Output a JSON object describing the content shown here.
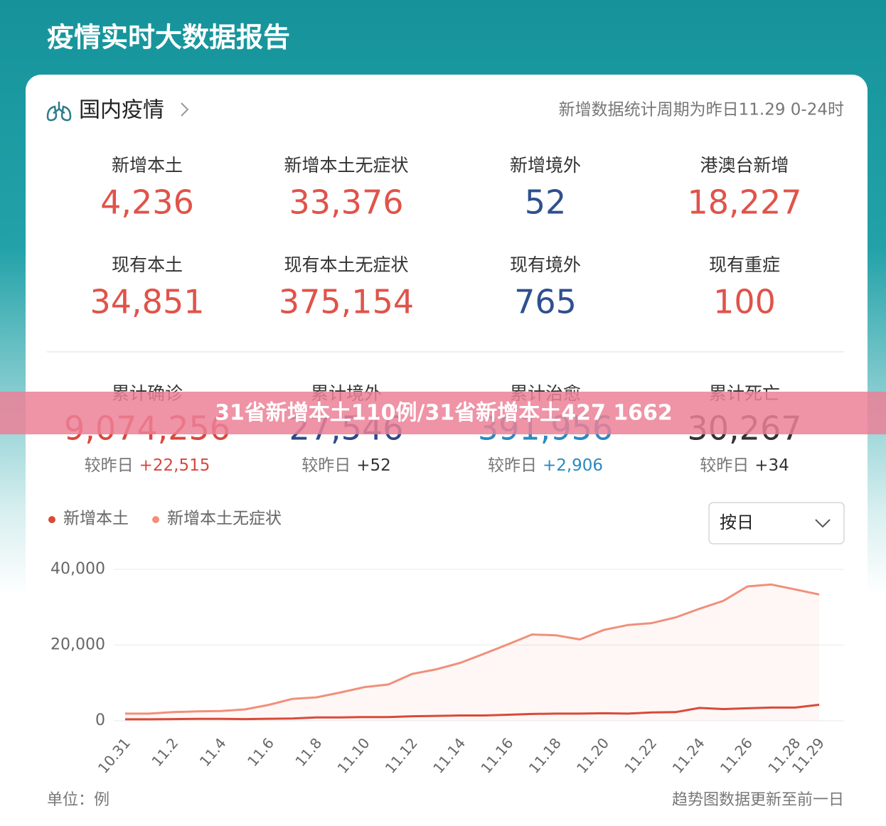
{
  "header": {
    "title": "疫情实时大数据报告"
  },
  "card": {
    "title": "国内疫情",
    "note": "新增数据统计周期为昨日11.29 0-24时"
  },
  "stats": [
    {
      "label": "新增本土",
      "value": "4,236",
      "color": "#e0534a"
    },
    {
      "label": "新增本土无症状",
      "value": "33,376",
      "color": "#e0534a"
    },
    {
      "label": "新增境外",
      "value": "52",
      "color": "#2f4f8f"
    },
    {
      "label": "港澳台新增",
      "value": "18,227",
      "color": "#e0534a"
    },
    {
      "label": "现有本土",
      "value": "34,851",
      "color": "#e0534a"
    },
    {
      "label": "现有本土无症状",
      "value": "375,154",
      "color": "#e0534a"
    },
    {
      "label": "现有境外",
      "value": "765",
      "color": "#2f4f8f"
    },
    {
      "label": "现有重症",
      "value": "100",
      "color": "#e0534a"
    }
  ],
  "totals": [
    {
      "label": "累计确诊",
      "value": "9,074,256",
      "color": "#d9473f",
      "change_label": "较昨日",
      "change": "+22,515",
      "change_color": "#d9473f"
    },
    {
      "label": "累计境外",
      "value": "27,546",
      "color": "#2b4a8a",
      "change_label": "较昨日",
      "change": "+52",
      "change_color": "#333333"
    },
    {
      "label": "累计治愈",
      "value": "391,956",
      "color": "#2a8ac0",
      "change_label": "较昨日",
      "change": "+2,906",
      "change_color": "#2a8ac0"
    },
    {
      "label": "累计死亡",
      "value": "30,267",
      "color": "#333333",
      "change_label": "较昨日",
      "change": "+34",
      "change_color": "#333333"
    }
  ],
  "banner": "31省新增本土110例/31省新增本土427 1662",
  "controls": {
    "period": "按日"
  },
  "chart_data": {
    "type": "line",
    "categories": [
      "10.31",
      null,
      "11.2",
      null,
      "11.4",
      null,
      "11.6",
      null,
      "11.8",
      null,
      "11.10",
      null,
      "11.12",
      null,
      "11.14",
      null,
      "11.16",
      null,
      "11.18",
      null,
      "11.20",
      null,
      "11.22",
      null,
      "11.24",
      null,
      "11.26",
      null,
      "11.28",
      "11.29"
    ],
    "series": [
      {
        "name": "新增本土",
        "color": "#d94a38",
        "values": [
          400,
          400,
          450,
          500,
          500,
          450,
          550,
          600,
          900,
          900,
          1000,
          1000,
          1200,
          1300,
          1400,
          1400,
          1600,
          1800,
          1900,
          1900,
          2000,
          1900,
          2200,
          2300,
          3400,
          3100,
          3300,
          3500,
          3500,
          4236
        ]
      },
      {
        "name": "新增本土无症状",
        "color": "#f0907a",
        "values": [
          1900,
          1900,
          2300,
          2500,
          2600,
          3000,
          4200,
          5800,
          6200,
          7500,
          8900,
          9600,
          12400,
          13600,
          15300,
          17700,
          20200,
          22800,
          22600,
          21500,
          24000,
          25300,
          25800,
          27300,
          29600,
          31700,
          35500,
          36000,
          34700,
          33376
        ]
      }
    ],
    "ylim": [
      0,
      40000
    ],
    "yticks": [
      {
        "value": 0,
        "label": "0"
      },
      {
        "value": 20000,
        "label": "20,000"
      },
      {
        "value": 40000,
        "label": "40,000"
      }
    ],
    "grid": true
  },
  "footer": {
    "unit": "单位：例",
    "note": "趋势图数据更新至前一日"
  }
}
